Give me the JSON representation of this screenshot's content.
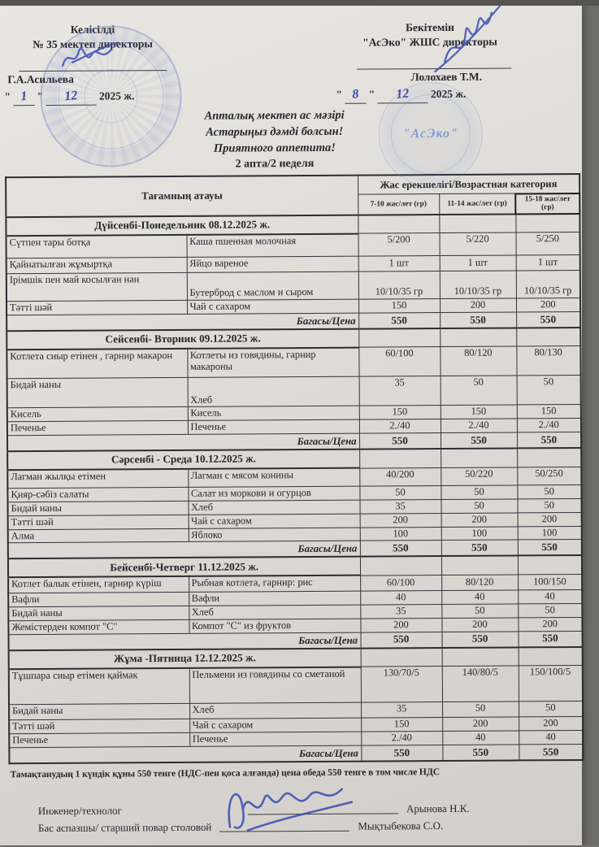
{
  "header": {
    "left": {
      "line1": "Келісілді",
      "line2": "№ 35 мектеп директоры",
      "name": "Г.А.Асильева",
      "day": "1",
      "month": "12",
      "year": "2025 ж."
    },
    "right": {
      "line1": "Бекітемін",
      "line2": "\"АсЭко\" ЖШС  директоры",
      "name": "Лолохаев Т.М.",
      "day": "8",
      "month": "12",
      "year": "2025 ж."
    }
  },
  "title": {
    "line1": "Апталық мектеп ас мәзірі",
    "line2": "Астарыңыз дәмді болсын!",
    "line3": "Приятного аппетита!",
    "line4": "2 апта/2 неделя"
  },
  "stamp": {
    "text": "\"АсЭко\""
  },
  "table": {
    "col_dish": "Тағамның атауы",
    "col_age_group": "Жас ерекшелігі/Возрастная категория",
    "age_cols": [
      "7-10 жас/лет (гр)",
      "11-14 жас/лет (гр)",
      "15-18 жас/лет (гр)"
    ],
    "price_label": "Багасы/Цена",
    "days": [
      {
        "title": "Дүйсенбі-Понедельник 08.12.2025 ж.",
        "rows": [
          {
            "kk": "Сүтпен тары ботқа",
            "ru": "Каша пшенная молочная",
            "v": [
              "5/200",
              "5/220",
              "5/250"
            ],
            "h": 28,
            "v_pos": "top"
          },
          {
            "kk": "Қайнатылған жұмыртқа",
            "ru": "Яйцо вареное",
            "v": [
              "1 шт",
              "1 шт",
              "1 шт"
            ],
            "h": 19
          },
          {
            "kk": "Ірімшік пен май косылған нан",
            "ru": "Бутерброд с маслом и сыром",
            "v": [
              "10/10/35 гр",
              "10/10/35 гр",
              "10/10/35 гр"
            ],
            "h": 34,
            "ru_pos": "bottom",
            "v_pos": "bottom"
          },
          {
            "kk": "Тәтті шәй",
            "ru": "Чай с сахаром",
            "v": [
              "150",
              "200",
              "200"
            ],
            "h": 16
          }
        ],
        "price": [
          "550",
          "550",
          "550"
        ]
      },
      {
        "title": "Сейсенбі- Вторник 09.12.2025 ж.",
        "rows": [
          {
            "kk": "Котлета сиыр етінен , гарнир макарон",
            "ru": "Котлеты из говядины, гарнир макароны",
            "v": [
              "60/100",
              "80/120",
              "80/130"
            ],
            "h": 36,
            "v_pos": "top"
          },
          {
            "kk": "Бидай наны",
            "ru": "Хлеб",
            "v": [
              "35",
              "50",
              "50"
            ],
            "h": 36,
            "ru_pos": "bottom",
            "v_pos": "top"
          },
          {
            "kk": "Кисель",
            "ru": "Кисель",
            "v": [
              "150",
              "150",
              "150"
            ],
            "h": 16
          },
          {
            "kk": "Печенье",
            "ru": "Печенье",
            "v": [
              "2./40",
              "2./40",
              "2./40"
            ],
            "h": 16
          }
        ],
        "price": [
          "550",
          "550",
          "550"
        ]
      },
      {
        "title": "Сәрсенбі - Среда 10.12.2025 ж.",
        "rows": [
          {
            "kk": "Лагман жылқы етімен",
            "ru": "Лагман с мясом конины",
            "v": [
              "40/200",
              "50/220",
              "50/250"
            ],
            "h": 22,
            "v_pos": "top"
          },
          {
            "kk": "Қияр-сәбіз салаты",
            "ru": "Салат из моркови и огурцов",
            "v": [
              "50",
              "50",
              "50"
            ],
            "h": 17
          },
          {
            "kk": "Бидай наны",
            "ru": "Хлеб",
            "v": [
              "35",
              "50",
              "50"
            ],
            "h": 16
          },
          {
            "kk": "Тәтті шәй",
            "ru": "Чай с сахаром",
            "v": [
              "200",
              "200",
              "200"
            ],
            "h": 16
          },
          {
            "kk": "Алма",
            "ru": "Яблоко",
            "v": [
              "100",
              "100",
              "100"
            ],
            "h": 16
          }
        ],
        "price": [
          "550",
          "550",
          "550"
        ]
      },
      {
        "title": "Бейсенбі-Четверг 11.12.2025 ж.",
        "rows": [
          {
            "kk": "Котлет балык етінен, гарнир күріш",
            "ru": "Рыбная котлета, гарнир: рис",
            "v": [
              "60/100",
              "80/120",
              "100/150"
            ],
            "h": 19
          },
          {
            "kk": "Вафли",
            "ru": "Вафли",
            "v": [
              "40",
              "40",
              "40"
            ],
            "h": 16
          },
          {
            "kk": "Бидай наны",
            "ru": "Хлеб",
            "v": [
              "35",
              "50",
              "50"
            ],
            "h": 16
          },
          {
            "kk": "Жемістерден компот \"С\"",
            "ru": "Компот \"С\" из фруктов",
            "v": [
              "200",
              "200",
              "200"
            ],
            "h": 17
          }
        ],
        "price": [
          "550",
          "550",
          "550"
        ]
      },
      {
        "title": "Жұма -Пятница 12.12.2025 ж.",
        "rows": [
          {
            "kk": "Тұшпара сиыр етімен қаймак",
            "ru": "Пельмени из говядины со сметаной",
            "v": [
              "130/70/5",
              "140/80/5",
              "150/100/5"
            ],
            "h": 44,
            "v_pos": "top"
          },
          {
            "kk": "Бидай наны",
            "ru": "Хлеб",
            "v": [
              "35",
              "50",
              "50"
            ],
            "h": 19,
            "v_pos": "top"
          },
          {
            "kk": "Тәтті шәй",
            "ru": "Чай с сахаром",
            "v": [
              "150",
              "200",
              "200"
            ],
            "h": 17,
            "v_pos": "top"
          },
          {
            "kk": "Печенье",
            "ru": "Печенье",
            "v": [
              "2./40",
              "40",
              "40"
            ],
            "h": 16
          }
        ],
        "price": [
          "550",
          "550",
          "550"
        ]
      }
    ]
  },
  "footer": {
    "note": "Тамақтанудың 1 күндік құны 550 тенге (НДС-пен қоса алғанда) цена обеда 550 тенге в том числе НДС",
    "sign1_label": "Инженер/технолог",
    "sign1_name": "Арынова Н.К.",
    "sign2_label": "Бас аспазшы/ старший повар столовой",
    "sign2_name": "Мықтыбекова С.О."
  }
}
